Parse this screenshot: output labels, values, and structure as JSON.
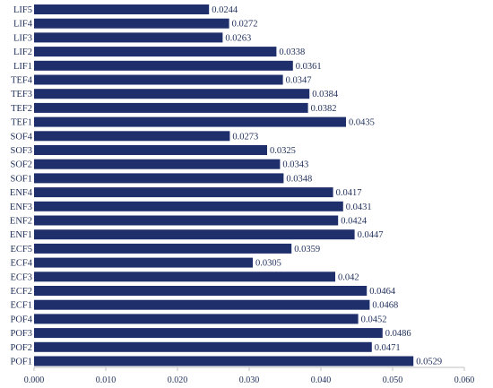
{
  "chart_data": {
    "type": "bar",
    "orientation": "horizontal",
    "title": "",
    "xlabel": "",
    "ylabel": "",
    "xlim": [
      0,
      0.06
    ],
    "grid": false,
    "legend": "none",
    "bar_color": "#1f2f6b",
    "tick_step": 0.01,
    "tick_labels": [
      "0.000",
      "0.010",
      "0.020",
      "0.030",
      "0.040",
      "0.050",
      "0.060"
    ],
    "categories": [
      "LIF5",
      "LIF4",
      "LIF3",
      "LIF2",
      "LIF1",
      "TEF4",
      "TEF3",
      "TEF2",
      "TEF1",
      "SOF4",
      "SOF3",
      "SOF2",
      "SOF1",
      "ENF4",
      "ENF3",
      "ENF2",
      "ENF1",
      "ECF5",
      "ECF4",
      "ECF3",
      "ECF2",
      "ECF1",
      "POF4",
      "POF3",
      "POF2",
      "POF1"
    ],
    "values": [
      0.0244,
      0.0272,
      0.0263,
      0.0338,
      0.0361,
      0.0347,
      0.0384,
      0.0382,
      0.0435,
      0.0273,
      0.0325,
      0.0343,
      0.0348,
      0.0417,
      0.0431,
      0.0424,
      0.0447,
      0.0359,
      0.0305,
      0.042,
      0.0464,
      0.0468,
      0.0452,
      0.0486,
      0.0471,
      0.0529
    ],
    "value_labels": [
      "0.0244",
      "0.0272",
      "0.0263",
      "0.0338",
      "0.0361",
      "0.0347",
      "0.0384",
      "0.0382",
      "0.0435",
      "0.0273",
      "0.0325",
      "0.0343",
      "0.0348",
      "0.0417",
      "0.0431",
      "0.0424",
      "0.0447",
      "0.0359",
      "0.0305",
      "0.042",
      "0.0464",
      "0.0468",
      "0.0452",
      "0.0486",
      "0.0471",
      "0.0529"
    ]
  }
}
